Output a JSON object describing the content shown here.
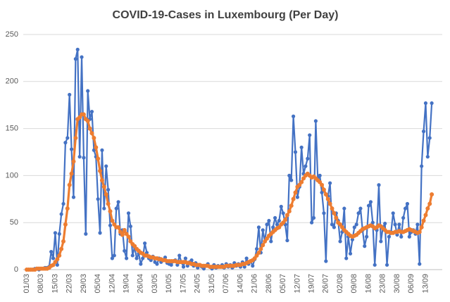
{
  "chart_data": {
    "type": "line",
    "title": "COVID-19-Cases in Luxembourg (Per Day)",
    "categories": [
      "01/03",
      null,
      null,
      null,
      null,
      null,
      null,
      "08/03",
      null,
      null,
      null,
      null,
      null,
      null,
      "15/03",
      null,
      null,
      null,
      null,
      null,
      null,
      "22/03",
      null,
      null,
      null,
      null,
      null,
      null,
      "29/03",
      null,
      null,
      null,
      null,
      null,
      null,
      "05/04",
      null,
      null,
      null,
      null,
      null,
      null,
      "12/04",
      null,
      null,
      null,
      null,
      null,
      null,
      "19/04",
      null,
      null,
      null,
      null,
      null,
      null,
      "26/04",
      null,
      null,
      null,
      null,
      null,
      null,
      "03/05",
      null,
      null,
      null,
      null,
      null,
      null,
      "10/05",
      null,
      null,
      null,
      null,
      null,
      null,
      "17/05",
      null,
      null,
      null,
      null,
      null,
      null,
      "24/05",
      null,
      null,
      null,
      null,
      null,
      null,
      "31/05",
      null,
      null,
      null,
      null,
      null,
      null,
      "07/06",
      null,
      null,
      null,
      null,
      null,
      null,
      "14/06",
      null,
      null,
      null,
      null,
      null,
      null,
      "21/06",
      null,
      null,
      null,
      null,
      null,
      null,
      "28/06",
      null,
      null,
      null,
      null,
      null,
      null,
      "05/07",
      null,
      null,
      null,
      null,
      null,
      null,
      "12/07",
      null,
      null,
      null,
      null,
      null,
      null,
      "19/07",
      null,
      null,
      null,
      null,
      null,
      null,
      "26/07",
      null,
      null,
      null,
      null,
      null,
      null,
      "02/08",
      null,
      null,
      null,
      null,
      null,
      null,
      "09/08",
      null,
      null,
      null,
      null,
      null,
      null,
      "16/08",
      null,
      null,
      null,
      null,
      null,
      null,
      "23/08",
      null,
      null,
      null,
      null,
      null,
      null,
      "30/08",
      null,
      null,
      null,
      null,
      null,
      null,
      "06/09",
      null,
      null,
      null,
      null,
      null,
      null,
      "13/09",
      null,
      null,
      null
    ],
    "series": [
      {
        "color": "#4472c4",
        "values": [
          0,
          0,
          0,
          0,
          1,
          1,
          0,
          1,
          1,
          2,
          2,
          3,
          19,
          12,
          39,
          5,
          38,
          59,
          70,
          135,
          140,
          186,
          128,
          77,
          224,
          234,
          120,
          226,
          119,
          38,
          190,
          160,
          168,
          127,
          120,
          75,
          39,
          127,
          65,
          110,
          85,
          47,
          12,
          15,
          65,
          72,
          38,
          42,
          20,
          12,
          60,
          46,
          15,
          24,
          12,
          17,
          6,
          12,
          28,
          18,
          12,
          10,
          14,
          8,
          6,
          12,
          8,
          10,
          13,
          7,
          6,
          5,
          9,
          10,
          5,
          15,
          8,
          3,
          12,
          4,
          8,
          10,
          4,
          7,
          2,
          5,
          3,
          1,
          4,
          6,
          3,
          1,
          5,
          2,
          4,
          3,
          5,
          2,
          6,
          3,
          5,
          2,
          7,
          4,
          6,
          3,
          8,
          3,
          12,
          6,
          9,
          4,
          11,
          22,
          45,
          18,
          42,
          30,
          48,
          52,
          30,
          45,
          55,
          48,
          52,
          67,
          60,
          48,
          31,
          100,
          95,
          163,
          125,
          77,
          88,
          130,
          102,
          110,
          118,
          143,
          50,
          55,
          158,
          96,
          100,
          82,
          60,
          9,
          78,
          92,
          48,
          45,
          60,
          52,
          30,
          40,
          65,
          12,
          35,
          17,
          32,
          45,
          48,
          60,
          65,
          42,
          25,
          35,
          68,
          72,
          50,
          5,
          42,
          90,
          30,
          45,
          49,
          5,
          35,
          40,
          60,
          48,
          37,
          48,
          35,
          55,
          65,
          70,
          35,
          40,
          42,
          38,
          48,
          6,
          110,
          147,
          177,
          120,
          140,
          177
        ]
      },
      {
        "color": "#ed7d31",
        "values": [
          0,
          0,
          0,
          0,
          0,
          1,
          1,
          1,
          1,
          1,
          1,
          2,
          4,
          5,
          8,
          11,
          15,
          22,
          30,
          48,
          65,
          90,
          102,
          115,
          140,
          160,
          162,
          165,
          165,
          160,
          158,
          150,
          145,
          140,
          130,
          118,
          105,
          95,
          88,
          80,
          70,
          62,
          52,
          48,
          45,
          45,
          40,
          37,
          42,
          38,
          35,
          30,
          27,
          25,
          22,
          20,
          18,
          17,
          15,
          15,
          14,
          13,
          13,
          12,
          12,
          11,
          11,
          10,
          10,
          9,
          9,
          9,
          9,
          9,
          8,
          8,
          8,
          8,
          8,
          7,
          7,
          6,
          6,
          5,
          5,
          5,
          4,
          4,
          4,
          4,
          3,
          3,
          3,
          3,
          3,
          3,
          3,
          3,
          4,
          4,
          4,
          4,
          4,
          5,
          5,
          5,
          6,
          6,
          7,
          8,
          9,
          10,
          12,
          15,
          18,
          22,
          26,
          30,
          33,
          36,
          38,
          40,
          42,
          44,
          45,
          48,
          50,
          53,
          58,
          62,
          68,
          75,
          82,
          88,
          90,
          93,
          97,
          100,
          102,
          100,
          98,
          99,
          97,
          95,
          93,
          90,
          85,
          80,
          75,
          70,
          65,
          60,
          55,
          50,
          48,
          45,
          42,
          40,
          38,
          36,
          35,
          36,
          37,
          39,
          41,
          43,
          44,
          45,
          46,
          47,
          46,
          44,
          45,
          47,
          46,
          44,
          42,
          40,
          40,
          39,
          39,
          40,
          40,
          41,
          40,
          40,
          41,
          42,
          43,
          42,
          41,
          40,
          39,
          40,
          45,
          52,
          58,
          65,
          70,
          80
        ]
      }
    ],
    "ylim": [
      0,
      250
    ],
    "yticks": [
      0,
      50,
      100,
      150,
      200,
      250
    ],
    "grid": true
  }
}
